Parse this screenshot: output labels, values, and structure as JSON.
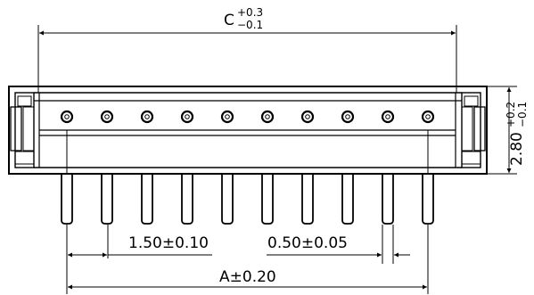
{
  "dimensions": {
    "overall_length": {
      "label": "C",
      "tol_upper": "+0.3",
      "tol_lower": "−0.1"
    },
    "height": {
      "label": "2.80",
      "tol_upper": "+0.2",
      "tol_lower": "−0.1"
    },
    "pitch": {
      "label": "1.50±0.10"
    },
    "pin_width": {
      "label": "0.50±0.05"
    },
    "pin_span": {
      "label": "A±0.20"
    }
  },
  "connector": {
    "pin_count": 10
  }
}
